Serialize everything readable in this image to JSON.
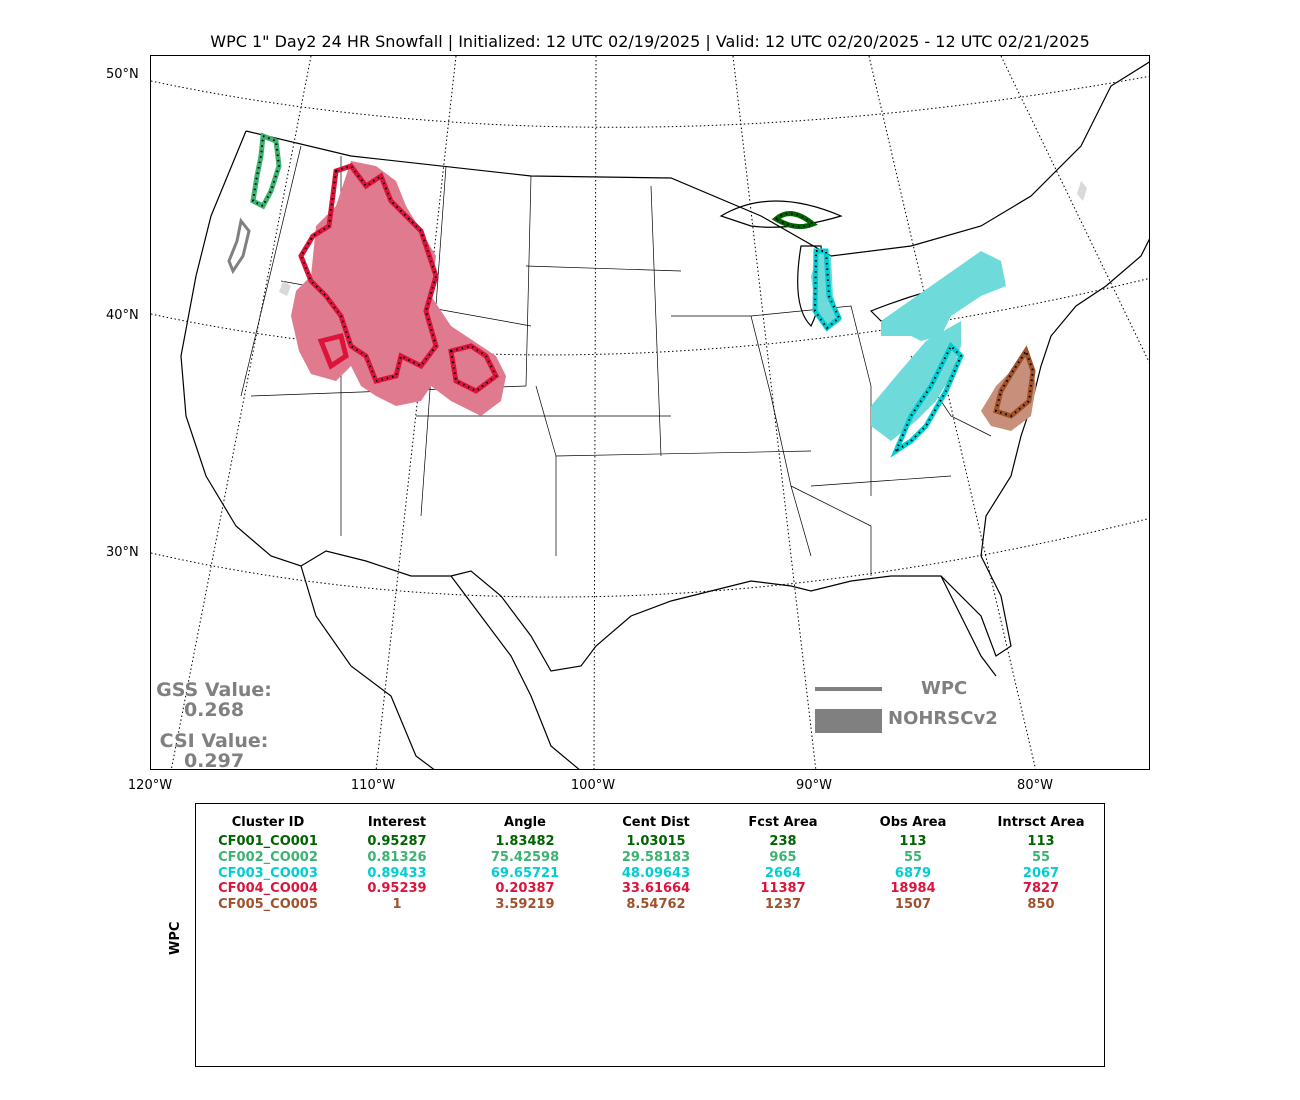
{
  "title": "WPC 1\" Day2 24 HR Snowfall | Initialized: 12 UTC 02/19/2025 | Valid: 12 UTC 02/20/2025 - 12 UTC 02/21/2025",
  "lat_labels": [
    "50°N",
    "40°N",
    "30°N"
  ],
  "lon_labels": [
    "120°W",
    "110°W",
    "100°W",
    "90°W",
    "80°W"
  ],
  "scores": {
    "gss_label": "GSS Value:",
    "gss_value": "0.268",
    "csi_label": "CSI Value:",
    "csi_value": "0.297"
  },
  "legend": {
    "line_label": "WPC",
    "fill_label": "NOHRSCv2",
    "color": "#808080"
  },
  "table": {
    "side_label": "WPC",
    "headers": [
      "Cluster ID",
      "Interest",
      "Angle",
      "Cent Dist",
      "Fcst Area",
      "Obs Area",
      "Intrsct Area"
    ],
    "rows": [
      {
        "color": "#006400",
        "cells": [
          "CF001_CO001",
          "0.95287",
          "1.83482",
          "1.03015",
          "238",
          "113",
          "113"
        ]
      },
      {
        "color": "#3cb371",
        "cells": [
          "CF002_CO002",
          "0.81326",
          "75.42598",
          "29.58183",
          "965",
          "55",
          "55"
        ]
      },
      {
        "color": "#00ced1",
        "cells": [
          "CF003_CO003",
          "0.89433",
          "69.65721",
          "48.09643",
          "2664",
          "6879",
          "2067"
        ]
      },
      {
        "color": "#dc143c",
        "cells": [
          "CF004_CO004",
          "0.95239",
          "0.20387",
          "33.61664",
          "11387",
          "18984",
          "7827"
        ]
      },
      {
        "color": "#a0522d",
        "cells": [
          "CF005_CO005",
          "1",
          "3.59219",
          "8.54762",
          "1237",
          "1507",
          "850"
        ]
      }
    ]
  },
  "cluster_colors": {
    "fill_light_red": "#e07a8e",
    "fill_cyan": "#6fdada",
    "fill_brown": "#c8907a",
    "line_red": "#dc143c",
    "line_cyan": "#00ced1",
    "line_brown": "#a0522d",
    "line_darkgreen": "#006400",
    "line_green": "#3cb371"
  }
}
